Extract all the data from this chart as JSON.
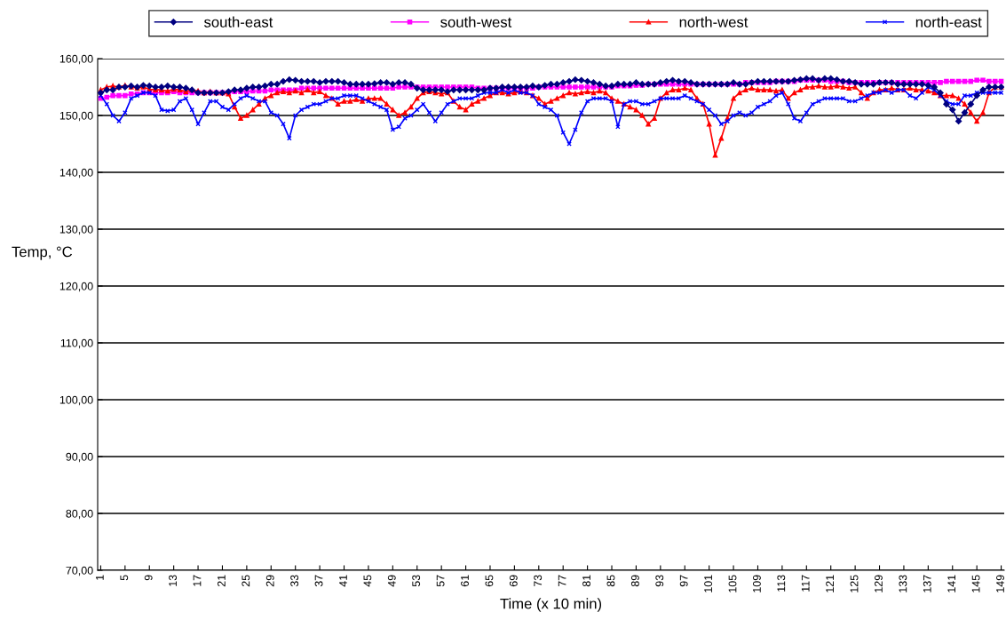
{
  "chart_data": {
    "type": "line",
    "xlabel": "Time (x 10 min)",
    "ylabel": "Temp, °C",
    "x": [
      1,
      2,
      3,
      4,
      5,
      6,
      7,
      8,
      9,
      10,
      11,
      12,
      13,
      14,
      15,
      16,
      17,
      18,
      19,
      20,
      21,
      22,
      23,
      24,
      25,
      26,
      27,
      28,
      29,
      30,
      31,
      32,
      33,
      34,
      35,
      36,
      37,
      38,
      39,
      40,
      41,
      42,
      43,
      44,
      45,
      46,
      47,
      48,
      49,
      50,
      51,
      52,
      53,
      54,
      55,
      56,
      57,
      58,
      59,
      60,
      61,
      62,
      63,
      64,
      65,
      66,
      67,
      68,
      69,
      70,
      71,
      72,
      73,
      74,
      75,
      76,
      77,
      78,
      79,
      80,
      81,
      82,
      83,
      84,
      85,
      86,
      87,
      88,
      89,
      90,
      91,
      92,
      93,
      94,
      95,
      96,
      97,
      98,
      99,
      100,
      101,
      102,
      103,
      104,
      105,
      106,
      107,
      108,
      109,
      110,
      111,
      112,
      113,
      114,
      115,
      116,
      117,
      118,
      119,
      120,
      121,
      122,
      123,
      124,
      125,
      126,
      127,
      128,
      129,
      130,
      131,
      132,
      133,
      134,
      135,
      136,
      137,
      138,
      139,
      140,
      141,
      142,
      143,
      144,
      145,
      146,
      147,
      148,
      149
    ],
    "xlim": [
      0.5,
      149.5
    ],
    "xticks": [
      1,
      5,
      9,
      13,
      17,
      21,
      25,
      29,
      33,
      37,
      41,
      45,
      49,
      53,
      57,
      61,
      65,
      69,
      73,
      77,
      81,
      85,
      89,
      93,
      97,
      101,
      105,
      109,
      113,
      117,
      121,
      125,
      129,
      133,
      137,
      141,
      145,
      149
    ],
    "ylim": [
      70,
      160
    ],
    "yticks": [
      {
        "value": 70,
        "label": "70,00"
      },
      {
        "value": 80,
        "label": "80,00"
      },
      {
        "value": 90,
        "label": "90,00"
      },
      {
        "value": 100,
        "label": "100,00"
      },
      {
        "value": 110,
        "label": "110,00"
      },
      {
        "value": 120,
        "label": "120,00"
      },
      {
        "value": 130,
        "label": "130,00"
      },
      {
        "value": 140,
        "label": "140,00"
      },
      {
        "value": 150,
        "label": "150,00"
      },
      {
        "value": 160,
        "label": "160,00"
      }
    ],
    "grid": "y",
    "legend": "top",
    "line_style": "solid",
    "series": [
      {
        "name": "south-east",
        "color": "#000080",
        "marker": "diamond",
        "values": [
          154,
          154.5,
          154.5,
          155,
          155,
          155.2,
          155,
          155.3,
          155.2,
          155,
          155,
          155.2,
          155,
          155,
          154.8,
          154.5,
          154,
          154,
          154,
          154,
          154,
          154.2,
          154.5,
          154.5,
          154.8,
          155,
          155,
          155.2,
          155.5,
          155.5,
          156,
          156.3,
          156.2,
          156,
          156,
          156,
          155.8,
          156,
          156,
          156,
          155.8,
          155.5,
          155.5,
          155.5,
          155.5,
          155.6,
          155.8,
          155.8,
          155.5,
          155.8,
          155.8,
          155.5,
          154.8,
          154.5,
          154.5,
          154.5,
          154.5,
          154.2,
          154.5,
          154.5,
          154.5,
          154.5,
          154.5,
          154.5,
          154.8,
          154.8,
          155,
          155,
          155,
          155,
          155,
          155.2,
          155,
          155.3,
          155.5,
          155.5,
          155.8,
          156,
          156.3,
          156.2,
          156,
          155.8,
          155.5,
          155.2,
          155.2,
          155.5,
          155.5,
          155.5,
          155.8,
          155.5,
          155.5,
          155.5,
          155.8,
          156,
          156.2,
          156,
          156,
          155.8,
          155.5,
          155.5,
          155.5,
          155.5,
          155.5,
          155.5,
          155.8,
          155.5,
          155.5,
          155.8,
          156,
          156,
          156,
          156,
          156,
          156,
          156.2,
          156.3,
          156.5,
          156.5,
          156.2,
          156.5,
          156.5,
          156.3,
          156,
          156,
          155.8,
          155.5,
          155.5,
          155.5,
          155.8,
          155.8,
          155.8,
          155.5,
          155.5,
          155.5,
          155.5,
          155.5,
          155.3,
          155,
          154,
          152,
          151,
          149,
          150.5,
          152,
          153.5,
          154.5,
          155,
          155,
          155
        ]
      },
      {
        "name": "south-west",
        "color": "#ff00ff",
        "marker": "square",
        "values": [
          153,
          153.2,
          153.5,
          153.5,
          153.5,
          153.8,
          153.8,
          154,
          154,
          154,
          154,
          154,
          154.2,
          154,
          154,
          154,
          154,
          154,
          154,
          154,
          154,
          154,
          154.2,
          154.2,
          154.2,
          154.3,
          154.3,
          154.3,
          154.5,
          154.5,
          154.5,
          154.5,
          154.5,
          154.8,
          154.8,
          154.8,
          154.8,
          154.8,
          154.8,
          154.8,
          154.8,
          154.8,
          154.8,
          154.8,
          154.8,
          154.8,
          154.8,
          154.8,
          154.8,
          155,
          155,
          155,
          155,
          155,
          155,
          155,
          155,
          155,
          155,
          155,
          155,
          155,
          154.8,
          154.8,
          154.8,
          154.8,
          154.8,
          154.8,
          154.8,
          154.8,
          154.8,
          154.8,
          155,
          155,
          155,
          155,
          155,
          155,
          155,
          155,
          155,
          155,
          155,
          155,
          155,
          155.2,
          155.2,
          155.2,
          155.3,
          155.3,
          155.5,
          155.5,
          155.5,
          155.5,
          155.5,
          155.5,
          155.5,
          155.5,
          155.5,
          155.5,
          155.5,
          155.5,
          155.5,
          155.5,
          155.5,
          155.5,
          155.8,
          155.8,
          155.8,
          155.8,
          155.8,
          156,
          156,
          156,
          156,
          156.2,
          156.2,
          156.2,
          156.2,
          156.2,
          156,
          156,
          156,
          155.8,
          155.8,
          155.8,
          155.8,
          155.8,
          155.8,
          155.8,
          155.8,
          155.8,
          155.8,
          155.8,
          155.8,
          155.8,
          155.8,
          155.8,
          155.8,
          156,
          156,
          156,
          156,
          156,
          156.2,
          156.2,
          156,
          156,
          156
        ]
      },
      {
        "name": "north-west",
        "color": "#ff0000",
        "marker": "triangle",
        "values": [
          154.5,
          155,
          155.2,
          155,
          155.3,
          155,
          154.8,
          155,
          154.6,
          154.5,
          154.5,
          154.3,
          154.6,
          154.5,
          154.2,
          154.5,
          154.3,
          154,
          154.2,
          154,
          154,
          153.8,
          151.5,
          149.5,
          150,
          151,
          152,
          153,
          153.5,
          154,
          154.2,
          154,
          154.3,
          154,
          154.5,
          154,
          154.2,
          153.5,
          153,
          152,
          152.5,
          152.5,
          152.8,
          152.5,
          153,
          153,
          153,
          152,
          151,
          150,
          150.5,
          151.5,
          153,
          154,
          154.2,
          154,
          153.8,
          154,
          152.5,
          151.5,
          151,
          152,
          152.5,
          153,
          153.5,
          154,
          154,
          153.8,
          154,
          154.2,
          154,
          153.5,
          153,
          152,
          152.5,
          153,
          153.5,
          154,
          153.8,
          154,
          154.2,
          154,
          154.3,
          154,
          153,
          152.5,
          152,
          151.5,
          151,
          150,
          148.5,
          149.5,
          153,
          154,
          154.5,
          154.5,
          154.8,
          154.5,
          153,
          152,
          148.5,
          143,
          146,
          149.5,
          153,
          154,
          154.5,
          154.8,
          154.5,
          154.5,
          154.5,
          154.3,
          154.5,
          153,
          154,
          154.5,
          155,
          155,
          155.2,
          155,
          155,
          155.2,
          155,
          154.8,
          155,
          154,
          153,
          154,
          154.5,
          154.5,
          154.8,
          154.5,
          154.5,
          154.8,
          154.5,
          154.5,
          154.3,
          154,
          153.5,
          153.5,
          153.5,
          153,
          152,
          150.5,
          149,
          150.5,
          154,
          155,
          155
        ]
      },
      {
        "name": "north-east",
        "color": "#0000ff",
        "marker": "cross",
        "values": [
          153.5,
          152,
          150,
          149,
          150.5,
          153,
          153.5,
          154,
          154,
          153.5,
          151,
          150.8,
          151,
          152.5,
          153,
          151,
          148.5,
          150.5,
          152.5,
          152.5,
          151.5,
          151,
          152,
          153,
          153.5,
          153,
          152.5,
          152.5,
          150.5,
          150,
          148.5,
          146,
          150,
          151,
          151.5,
          152,
          152,
          152.5,
          153,
          153,
          153.5,
          153.5,
          153.5,
          153,
          152.5,
          152,
          151.5,
          151,
          147.5,
          148,
          149.5,
          150,
          151,
          152,
          150.5,
          149,
          150.5,
          152,
          152.5,
          153,
          153,
          153,
          153.5,
          154,
          154,
          154,
          154.5,
          154,
          154.5,
          154,
          154,
          153.5,
          152,
          151.5,
          151,
          150,
          147,
          145,
          147.5,
          150.5,
          152.5,
          153,
          153,
          153,
          152.5,
          148,
          152,
          152.5,
          152.5,
          152,
          152,
          152.5,
          153,
          153,
          153,
          153,
          153.5,
          153,
          152.5,
          152,
          151,
          150,
          148.5,
          149,
          150,
          150.5,
          150,
          150.5,
          151.5,
          152,
          152.5,
          153.5,
          154,
          152,
          149.5,
          149,
          150.5,
          152,
          152.5,
          153,
          153,
          153,
          153,
          152.5,
          152.5,
          153,
          153.5,
          154,
          154,
          154.5,
          154,
          154.5,
          154.5,
          153.5,
          153,
          154,
          155,
          154.5,
          153.5,
          152.5,
          152,
          152,
          153.5,
          153.5,
          154,
          154,
          154,
          154,
          154
        ]
      }
    ]
  }
}
